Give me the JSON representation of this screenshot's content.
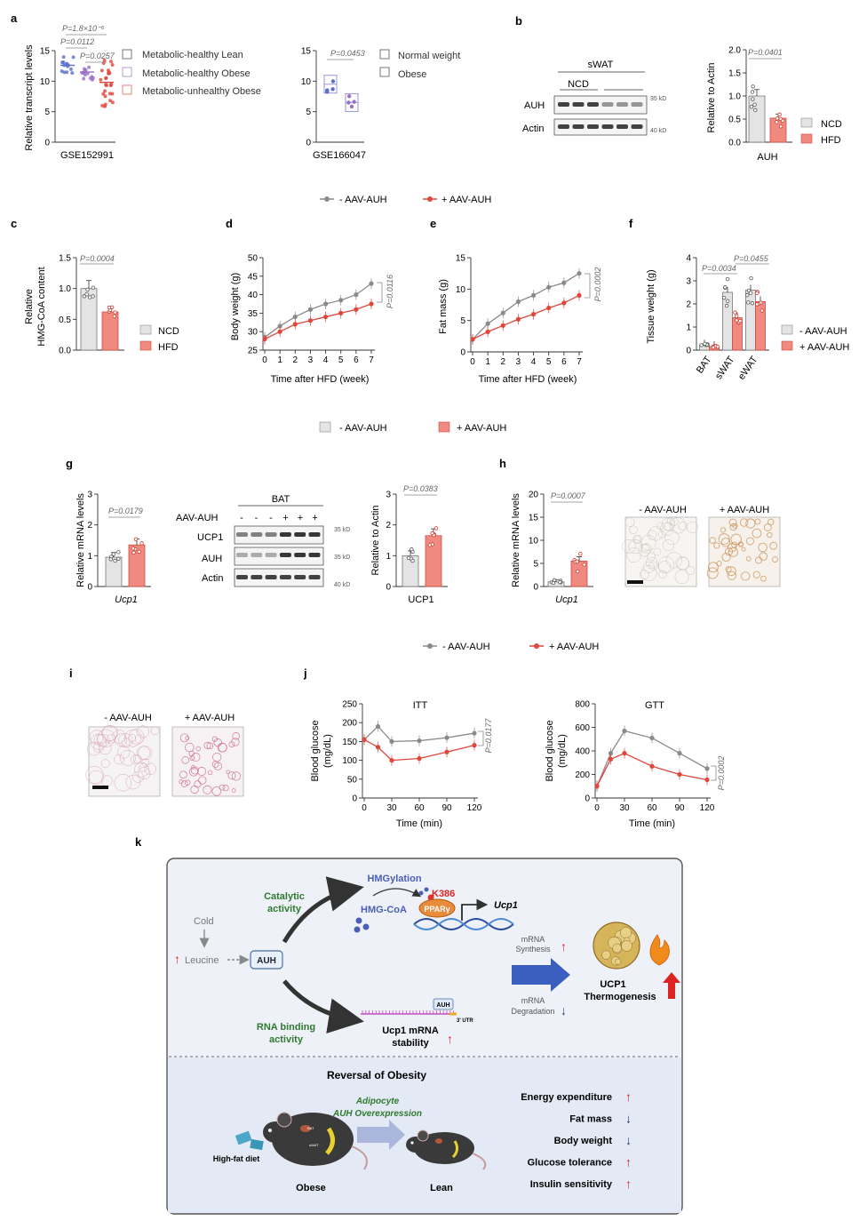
{
  "panel_letters": [
    "a",
    "b",
    "c",
    "d",
    "e",
    "f",
    "g",
    "h",
    "i",
    "j",
    "k"
  ],
  "colors": {
    "grey": "#8a8a8a",
    "red": "#e0463c",
    "blue": "#5b6fc7",
    "purple": "#9b6fc4",
    "redbar": "#f08a80",
    "greybar": "#e4e4e4",
    "panel_bg": "#eaf0f8"
  },
  "panel_a": {
    "ylabel": "Relative transcript levels",
    "left": {
      "xlabel": "GSE152991",
      "ylim": [
        0,
        15
      ],
      "ticks": [
        "0",
        "5",
        "10",
        "15"
      ],
      "groups": [
        {
          "name": "Metabolic-healthy Lean",
          "median": 12.6,
          "color": "#5b6fc7"
        },
        {
          "name": "Metabolic-healthy Obese",
          "median": 11.5,
          "color": "#9b6fc4"
        },
        {
          "name": "Metabolic-unhealthy Obese",
          "median": 9.8,
          "color": "#e0463c"
        }
      ],
      "pvalues": [
        "P=1.8×10⁻⁶",
        "P=0.0112",
        "P=0.0257"
      ]
    },
    "right": {
      "xlabel": "GSE166047",
      "ylim": [
        0,
        15
      ],
      "ticks": [
        "0",
        "5",
        "10",
        "15"
      ],
      "groups": [
        {
          "name": "Normal weight",
          "median": 9.5,
          "color": "#5b6fc7"
        },
        {
          "name": "Obese",
          "median": 6.5,
          "color": "#9b6fc4"
        }
      ],
      "pvalues": [
        "P=0.0453"
      ]
    }
  },
  "panel_b": {
    "blot": {
      "tissue": "sWAT",
      "group": "NCD",
      "rows": [
        "AUH",
        "Actin"
      ],
      "markers": [
        "35 kD",
        "40 kD"
      ]
    },
    "bar": {
      "ylabel": "Relative to Actin",
      "xlabel": "AUH",
      "ticks": [
        "0.0",
        "0.5",
        "1.0",
        "1.5",
        "2.0"
      ],
      "ylim": [
        0,
        2
      ],
      "legend": [
        "NCD",
        "HFD"
      ],
      "values": [
        1.0,
        0.52
      ],
      "pvalue": "P=0.0401"
    }
  },
  "legend_dj": {
    "minus": "- AAV-AUH",
    "plus": "+ AAV-AUH"
  },
  "legend_g": {
    "minus": "- AAV-AUH",
    "plus": "+ AAV-AUH"
  },
  "panel_c": {
    "ylabel1": "Relative",
    "ylabel2": "HMG-CoA content",
    "ticks": [
      "0.0",
      "0.5",
      "1.0",
      "1.5"
    ],
    "ylim": [
      0,
      1.5
    ],
    "legend": [
      "NCD",
      "HFD"
    ],
    "values": [
      1.0,
      0.62
    ],
    "pvalue": "P=0.0004"
  },
  "panel_d": {
    "ylabel": "Body weight (g)",
    "xlabel": "Time after HFD (week)",
    "yticks": [
      "25",
      "30",
      "35",
      "40",
      "45",
      "50"
    ],
    "ylim": [
      25,
      50
    ],
    "xticks": [
      "0",
      "1",
      "2",
      "3",
      "4",
      "5",
      "6",
      "7"
    ],
    "minus": [
      28.5,
      31.5,
      34,
      36,
      37.5,
      38.5,
      40,
      43
    ],
    "plus": [
      28,
      30,
      32,
      33,
      34,
      35,
      36,
      37.5
    ],
    "pvalue": "P=0.0116"
  },
  "panel_e": {
    "ylabel": "Fat mass (g)",
    "xlabel": "Time after HFD (week)",
    "yticks": [
      "0",
      "5",
      "10",
      "15"
    ],
    "ylim": [
      0,
      15
    ],
    "xticks": [
      "0",
      "1",
      "2",
      "3",
      "4",
      "5",
      "6",
      "7"
    ],
    "minus": [
      2,
      4.5,
      6.2,
      8,
      9,
      10.3,
      11,
      12.5
    ],
    "plus": [
      2,
      3.2,
      4.2,
      5.2,
      6,
      7,
      7.8,
      9
    ],
    "pvalue": "P=0.0002"
  },
  "panel_f": {
    "ylabel": "Tissue weight (g)",
    "yticks": [
      "0",
      "1",
      "2",
      "3",
      "4"
    ],
    "ylim": [
      0,
      4
    ],
    "categories": [
      "BAT",
      "sWAT",
      "eWAT"
    ],
    "minus": [
      0.22,
      2.5,
      2.6
    ],
    "plus": [
      0.15,
      1.4,
      2.1
    ],
    "pvalues": [
      "P=0.0034",
      "P=0.0455"
    ],
    "legend": [
      "- AAV-AUH",
      "+ AAV-AUH"
    ]
  },
  "panel_g": {
    "bar1": {
      "ylabel": "Relative mRNA levels",
      "xlabel": "Ucp1",
      "ticks": [
        "0",
        "1",
        "2",
        "3"
      ],
      "ylim": [
        0,
        3
      ],
      "values": [
        0.95,
        1.35
      ],
      "pvalue": "P=0.0179"
    },
    "blot": {
      "tissue": "BAT",
      "label": "AAV-AUH",
      "signs": [
        "-",
        "-",
        "-",
        "+",
        "+",
        "+"
      ],
      "rows": [
        "UCP1",
        "AUH",
        "Actin"
      ],
      "markers": [
        "35 kD",
        "35 kD",
        "40 kD"
      ]
    },
    "bar2": {
      "ylabel": "Relative to Actin",
      "xlabel": "UCP1",
      "ticks": [
        "0",
        "1",
        "2",
        "3"
      ],
      "ylim": [
        0,
        3
      ],
      "values": [
        1.0,
        1.65
      ],
      "pvalue": "P=0.0383"
    }
  },
  "panel_h": {
    "ylabel": "Relative mRNA levels",
    "xlabel": "Ucp1",
    "ticks": [
      "0",
      "5",
      "10",
      "15",
      "20"
    ],
    "ylim": [
      0,
      20
    ],
    "values": [
      1.0,
      5.5
    ],
    "pvalue": "P=0.0007",
    "img_labels": [
      "- AAV-AUH",
      "+ AAV-AUH"
    ]
  },
  "panel_i": {
    "img_labels": [
      "- AAV-AUH",
      "+ AAV-AUH"
    ]
  },
  "panel_j": {
    "legend": {
      "minus": "- AAV-AUH",
      "plus": "+ AAV-AUH"
    },
    "itt": {
      "title": "ITT",
      "ylabel1": "Blood glucose",
      "ylabel2": "(mg/dL)",
      "xlabel": "Time (min)",
      "yticks": [
        "0",
        "50",
        "100",
        "150",
        "200",
        "250"
      ],
      "ylim": [
        0,
        250
      ],
      "x": [
        0,
        15,
        30,
        60,
        90,
        120
      ],
      "xticks": [
        "0",
        "30",
        "60",
        "90",
        "120"
      ],
      "minus": [
        155,
        190,
        150,
        152,
        160,
        172
      ],
      "plus": [
        155,
        135,
        100,
        105,
        122,
        140
      ],
      "pvalue": "P=0.0177"
    },
    "gtt": {
      "title": "GTT",
      "ylabel1": "Blood glucose",
      "ylabel2": "(mg/dL)",
      "xlabel": "Time (min)",
      "yticks": [
        "0",
        "200",
        "400",
        "600",
        "800"
      ],
      "ylim": [
        0,
        800
      ],
      "x": [
        0,
        15,
        30,
        60,
        90,
        120
      ],
      "xticks": [
        "0",
        "30",
        "60",
        "90",
        "120"
      ],
      "minus": [
        100,
        380,
        570,
        510,
        380,
        250
      ],
      "plus": [
        100,
        330,
        380,
        270,
        200,
        155
      ],
      "pvalue": "P=0.0002"
    }
  },
  "panel_k": {
    "cold": "Cold",
    "leucine": "Leucine",
    "auh": "AUH",
    "catalytic": [
      "Catalytic",
      "activity"
    ],
    "hmgylation": "HMGylation",
    "hmgcoa": "HMG-CoA",
    "k386": "K386",
    "ppar": "PPARγ",
    "ucp1_gene": "Ucp1",
    "rna_binding": [
      "RNA binding",
      "activity"
    ],
    "auh_tag": "AUH",
    "utr": "3' UTR",
    "stability": [
      "Ucp1 mRNA",
      "stability"
    ],
    "synthesis": [
      "mRNA",
      "Synthesis"
    ],
    "degradation": [
      "mRNA",
      "Degradation"
    ],
    "thermo": [
      "UCP1",
      "Thermogenesis"
    ],
    "reversal": "Reversal of Obesity",
    "adipocyte": [
      "Adipocyte",
      "AUH Overexpression"
    ],
    "hfd": "High-fat diet",
    "obese": "Obese",
    "lean": "Lean",
    "bat": "BAT",
    "swat": "sWAT",
    "effects": [
      {
        "label": "Energy expenditure",
        "dir": "up"
      },
      {
        "label": "Fat mass",
        "dir": "down"
      },
      {
        "label": "Body weight",
        "dir": "down"
      },
      {
        "label": "Glucose tolerance",
        "dir": "up"
      },
      {
        "label": "Insulin sensitivity",
        "dir": "up"
      }
    ]
  }
}
